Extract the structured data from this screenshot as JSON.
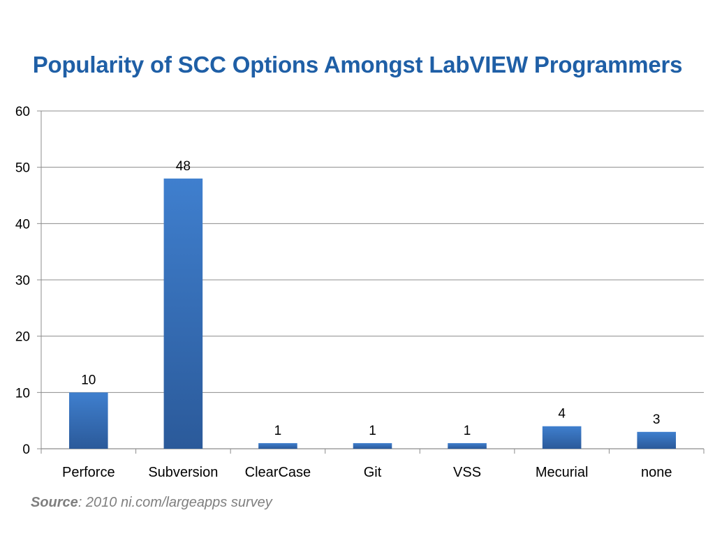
{
  "slide": {
    "title": "Popularity of SCC Options Amongst LabVIEW Programmers",
    "source_label": "Source",
    "source_text": ": 2010 ni.com/largeapps survey"
  },
  "chart_data": {
    "type": "bar",
    "title": "Popularity of SCC Options Amongst LabVIEW Programmers",
    "xlabel": "",
    "ylabel": "",
    "categories": [
      "Perforce",
      "Subversion",
      "ClearCase",
      "Git",
      "VSS",
      "Mecurial",
      "none"
    ],
    "values": [
      10,
      48,
      1,
      1,
      1,
      4,
      3
    ],
    "data_labels": [
      "10",
      "48",
      "1",
      "1",
      "1",
      "4",
      "3"
    ],
    "ylim": [
      0,
      60
    ],
    "yticks": [
      0,
      10,
      20,
      30,
      40,
      50,
      60
    ],
    "ytick_labels": [
      "0",
      "10",
      "20",
      "30",
      "40",
      "50",
      "60"
    ],
    "grid": true,
    "legend": "none",
    "colors": {
      "bar_top": "#3f7fce",
      "bar_bottom": "#2b5a9a",
      "gridline": "#8c8c8c",
      "axis": "#8c8c8c",
      "title": "#1f5fa6",
      "text": "#000000",
      "source": "#7f7f7f"
    }
  }
}
